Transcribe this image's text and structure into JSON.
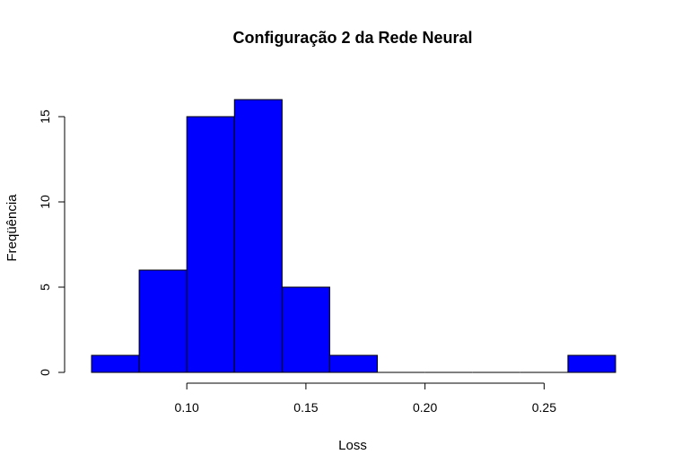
{
  "chart_data": {
    "type": "bar",
    "title": "Configuração 2 da Rede Neural",
    "xlabel": "Loss",
    "ylabel": "Freqüência",
    "bins": [
      {
        "start": 0.06,
        "end": 0.08,
        "count": 1
      },
      {
        "start": 0.08,
        "end": 0.1,
        "count": 6
      },
      {
        "start": 0.1,
        "end": 0.12,
        "count": 15
      },
      {
        "start": 0.12,
        "end": 0.14,
        "count": 16
      },
      {
        "start": 0.14,
        "end": 0.16,
        "count": 5
      },
      {
        "start": 0.16,
        "end": 0.18,
        "count": 1
      },
      {
        "start": 0.18,
        "end": 0.2,
        "count": 0
      },
      {
        "start": 0.2,
        "end": 0.22,
        "count": 0
      },
      {
        "start": 0.22,
        "end": 0.24,
        "count": 0
      },
      {
        "start": 0.24,
        "end": 0.26,
        "count": 0
      },
      {
        "start": 0.26,
        "end": 0.28,
        "count": 1
      }
    ],
    "xlim": [
      0.06,
      0.28
    ],
    "ylim": [
      0,
      16
    ],
    "x_ticks": [
      "0.10",
      "0.15",
      "0.20",
      "0.25"
    ],
    "y_ticks": [
      "0",
      "5",
      "10",
      "15"
    ],
    "bar_color": "#0000ff",
    "bar_edge_color": "#000000",
    "grid": false
  }
}
